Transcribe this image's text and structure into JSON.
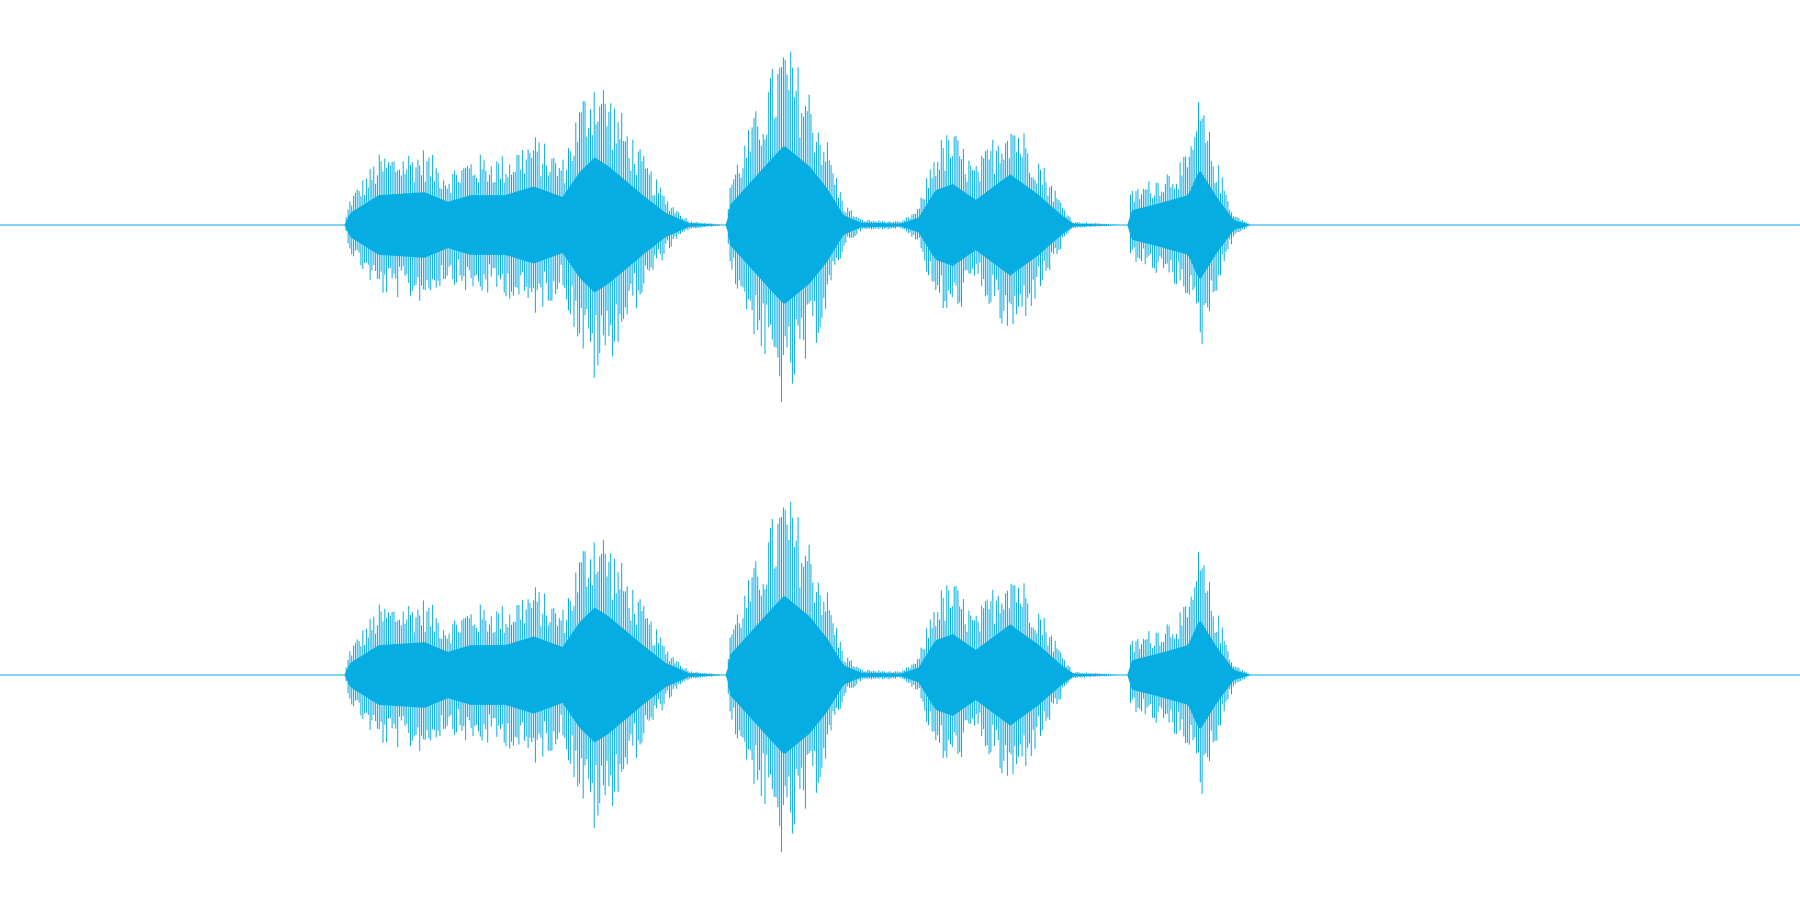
{
  "waveform": {
    "color": "#06ade3"
  }
}
